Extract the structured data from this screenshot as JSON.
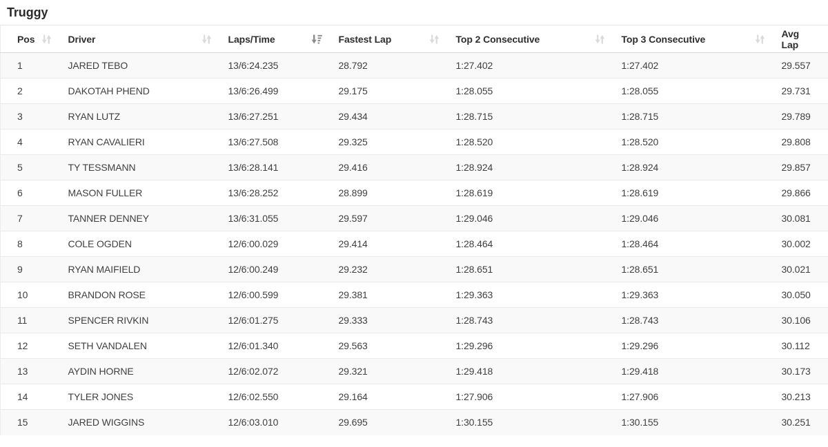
{
  "page": {
    "title": "Truggy"
  },
  "colors": {
    "stripe_row": "#f9f9f9",
    "row_border": "#e9e9e9",
    "header_border": "#d8d8d8",
    "text_main": "#3f3f3f",
    "text_header": "#2e2e2e",
    "sort_icon_inactive": "#dadada",
    "sort_icon_active": "#8c8c8c"
  },
  "table": {
    "columns": [
      {
        "key": "pos",
        "label": "Pos",
        "sort": "unsorted"
      },
      {
        "key": "driver",
        "label": "Driver",
        "sort": "unsorted"
      },
      {
        "key": "laps_time",
        "label": "Laps/Time",
        "sort": "sorted-desc"
      },
      {
        "key": "fastest_lap",
        "label": "Fastest Lap",
        "sort": "unsorted"
      },
      {
        "key": "top_2_consecutive",
        "label": "Top 2 Consecutive",
        "sort": "unsorted"
      },
      {
        "key": "top_3_consecutive",
        "label": "Top 3 Consecutive",
        "sort": "unsorted"
      },
      {
        "key": "avg_lap",
        "label": "Avg Lap",
        "sort": "none"
      }
    ],
    "rows": [
      {
        "pos": "1",
        "driver": "JARED TEBO",
        "laps_time": "13/6:24.235",
        "fastest_lap": "28.792",
        "top_2_consecutive": "1:27.402",
        "top_3_consecutive": "1:27.402",
        "avg_lap": "29.557"
      },
      {
        "pos": "2",
        "driver": "DAKOTAH PHEND",
        "laps_time": "13/6:26.499",
        "fastest_lap": "29.175",
        "top_2_consecutive": "1:28.055",
        "top_3_consecutive": "1:28.055",
        "avg_lap": "29.731"
      },
      {
        "pos": "3",
        "driver": "RYAN LUTZ",
        "laps_time": "13/6:27.251",
        "fastest_lap": "29.434",
        "top_2_consecutive": "1:28.715",
        "top_3_consecutive": "1:28.715",
        "avg_lap": "29.789"
      },
      {
        "pos": "4",
        "driver": "RYAN CAVALIERI",
        "laps_time": "13/6:27.508",
        "fastest_lap": "29.325",
        "top_2_consecutive": "1:28.520",
        "top_3_consecutive": "1:28.520",
        "avg_lap": "29.808"
      },
      {
        "pos": "5",
        "driver": "TY TESSMANN",
        "laps_time": "13/6:28.141",
        "fastest_lap": "29.416",
        "top_2_consecutive": "1:28.924",
        "top_3_consecutive": "1:28.924",
        "avg_lap": "29.857"
      },
      {
        "pos": "6",
        "driver": "MASON FULLER",
        "laps_time": "13/6:28.252",
        "fastest_lap": "28.899",
        "top_2_consecutive": "1:28.619",
        "top_3_consecutive": "1:28.619",
        "avg_lap": "29.866"
      },
      {
        "pos": "7",
        "driver": "TANNER DENNEY",
        "laps_time": "13/6:31.055",
        "fastest_lap": "29.597",
        "top_2_consecutive": "1:29.046",
        "top_3_consecutive": "1:29.046",
        "avg_lap": "30.081"
      },
      {
        "pos": "8",
        "driver": "COLE OGDEN",
        "laps_time": "12/6:00.029",
        "fastest_lap": "29.414",
        "top_2_consecutive": "1:28.464",
        "top_3_consecutive": "1:28.464",
        "avg_lap": "30.002"
      },
      {
        "pos": "9",
        "driver": "RYAN MAIFIELD",
        "laps_time": "12/6:00.249",
        "fastest_lap": "29.232",
        "top_2_consecutive": "1:28.651",
        "top_3_consecutive": "1:28.651",
        "avg_lap": "30.021"
      },
      {
        "pos": "10",
        "driver": "BRANDON ROSE",
        "laps_time": "12/6:00.599",
        "fastest_lap": "29.381",
        "top_2_consecutive": "1:29.363",
        "top_3_consecutive": "1:29.363",
        "avg_lap": "30.050"
      },
      {
        "pos": "11",
        "driver": "SPENCER RIVKIN",
        "laps_time": "12/6:01.275",
        "fastest_lap": "29.333",
        "top_2_consecutive": "1:28.743",
        "top_3_consecutive": "1:28.743",
        "avg_lap": "30.106"
      },
      {
        "pos": "12",
        "driver": "SETH VANDALEN",
        "laps_time": "12/6:01.340",
        "fastest_lap": "29.563",
        "top_2_consecutive": "1:29.296",
        "top_3_consecutive": "1:29.296",
        "avg_lap": "30.112"
      },
      {
        "pos": "13",
        "driver": "AYDIN HORNE",
        "laps_time": "12/6:02.072",
        "fastest_lap": "29.321",
        "top_2_consecutive": "1:29.418",
        "top_3_consecutive": "1:29.418",
        "avg_lap": "30.173"
      },
      {
        "pos": "14",
        "driver": "TYLER JONES",
        "laps_time": "12/6:02.550",
        "fastest_lap": "29.164",
        "top_2_consecutive": "1:27.906",
        "top_3_consecutive": "1:27.906",
        "avg_lap": "30.213"
      },
      {
        "pos": "15",
        "driver": "JARED WIGGINS",
        "laps_time": "12/6:03.010",
        "fastest_lap": "29.695",
        "top_2_consecutive": "1:30.155",
        "top_3_consecutive": "1:30.155",
        "avg_lap": "30.251"
      }
    ]
  }
}
